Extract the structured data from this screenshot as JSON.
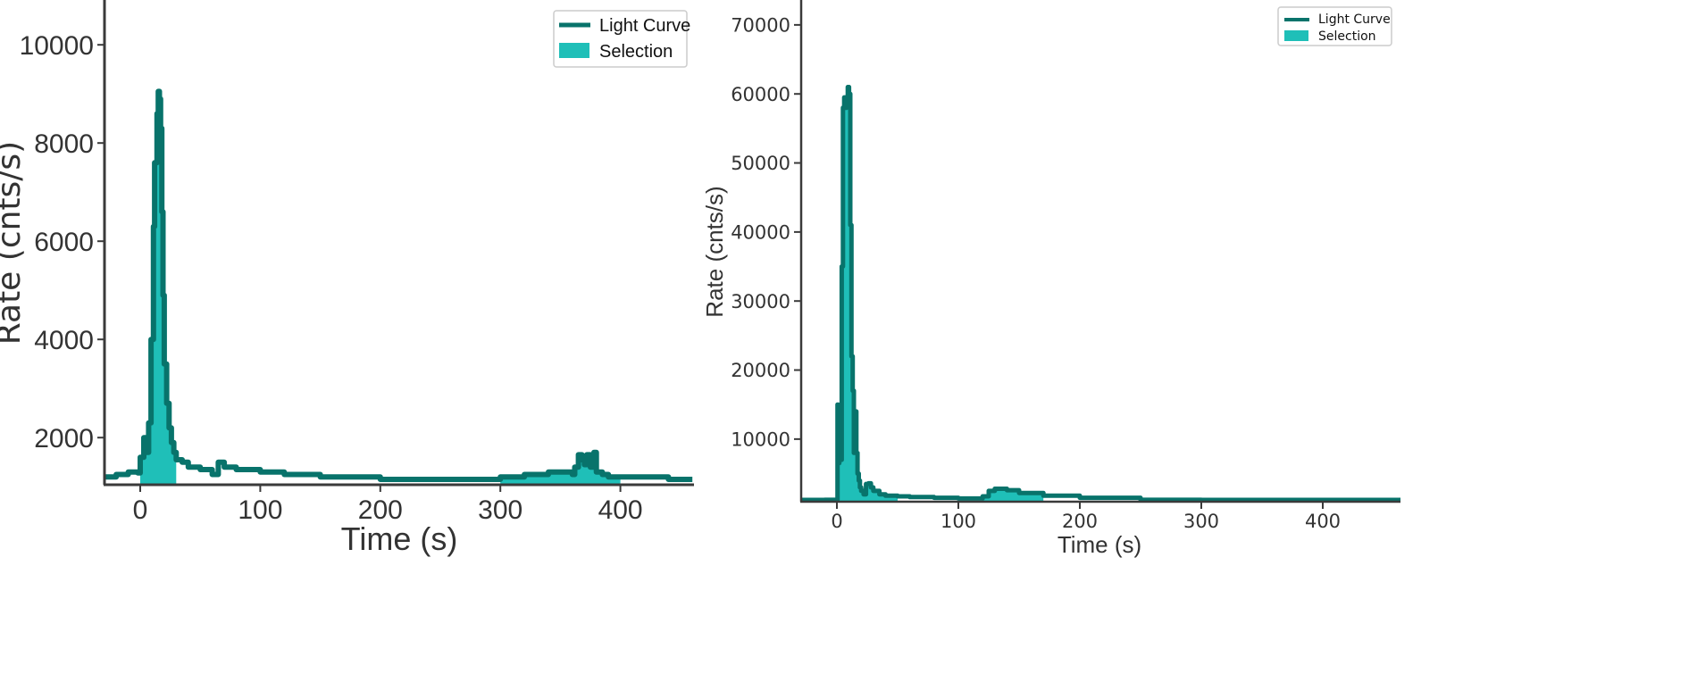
{
  "chart_data": [
    {
      "type": "line",
      "panel": "left",
      "title": "",
      "xlabel": "Time (s)",
      "ylabel": "Rate (cnts/s)",
      "xlim": [
        -30,
        460
      ],
      "ylim": [
        1000,
        10900
      ],
      "xticks": [
        0,
        100,
        200,
        300,
        400
      ],
      "yticks": [
        2000,
        4000,
        6000,
        8000,
        10000
      ],
      "grid": false,
      "legend": {
        "position": "upper right",
        "entries": [
          "Light Curve",
          "Selection"
        ]
      },
      "colors": {
        "light_curve": "#08736b",
        "selection": "#1fbfb8"
      },
      "selections": [
        [
          0,
          30
        ],
        [
          300,
          400
        ]
      ],
      "series": [
        {
          "name": "Light Curve",
          "x": [
            -30,
            -20,
            -10,
            -2,
            0,
            3,
            5,
            7,
            9,
            11,
            12,
            14,
            15,
            16,
            17,
            18,
            19,
            20,
            22,
            24,
            26,
            28,
            30,
            35,
            40,
            50,
            60,
            65,
            70,
            80,
            100,
            120,
            150,
            200,
            250,
            290,
            300,
            320,
            340,
            355,
            360,
            362,
            365,
            368,
            370,
            372,
            375,
            378,
            380,
            385,
            390,
            400,
            420,
            440,
            460
          ],
          "y": [
            1200,
            1250,
            1300,
            1280,
            1600,
            2000,
            1700,
            2300,
            4000,
            6300,
            7600,
            8600,
            9050,
            8900,
            8300,
            6600,
            4900,
            3500,
            2700,
            2200,
            1900,
            1700,
            1550,
            1500,
            1400,
            1350,
            1250,
            1500,
            1400,
            1350,
            1300,
            1250,
            1200,
            1150,
            1150,
            1150,
            1200,
            1250,
            1300,
            1300,
            1250,
            1400,
            1650,
            1550,
            1450,
            1650,
            1400,
            1700,
            1300,
            1250,
            1200,
            1200,
            1200,
            1150,
            1150
          ]
        },
        {
          "name": "Selection",
          "ranges": [
            [
              0,
              30
            ],
            [
              300,
              400
            ]
          ]
        }
      ]
    },
    {
      "type": "line",
      "panel": "right",
      "title": "",
      "xlabel": "Time (s)",
      "ylabel": "Rate (cnts/s)",
      "xlim": [
        -29,
        464
      ],
      "ylim": [
        900,
        74000
      ],
      "xticks": [
        0,
        100,
        200,
        300,
        400
      ],
      "yticks": [
        10000,
        20000,
        30000,
        40000,
        50000,
        60000,
        70000
      ],
      "grid": false,
      "legend": {
        "position": "upper right",
        "entries": [
          "Light Curve",
          "Selection"
        ]
      },
      "colors": {
        "light_curve": "#08736b",
        "selection": "#1fbfb8"
      },
      "selections": [
        [
          0,
          50
        ],
        [
          120,
          170
        ]
      ],
      "series": [
        {
          "name": "Light Curve",
          "x": [
            -29,
            -10,
            0,
            0.5,
            1,
            2,
            3,
            4,
            5,
            6,
            7,
            8,
            9,
            10,
            11,
            12,
            13,
            14,
            15,
            16,
            17,
            18,
            19,
            20,
            22,
            24,
            26,
            28,
            30,
            35,
            40,
            50,
            60,
            80,
            100,
            118,
            120,
            125,
            130,
            140,
            150,
            170,
            200,
            250,
            300,
            350,
            400,
            464
          ],
          "y": [
            1100,
            1200,
            1100,
            15000,
            6500,
            11000,
            7000,
            35000,
            58000,
            59500,
            58000,
            59000,
            61000,
            60000,
            41000,
            22000,
            17000,
            8000,
            14000,
            8000,
            5000,
            4000,
            3000,
            2500,
            2000,
            3500,
            3600,
            3000,
            2500,
            2000,
            1800,
            1700,
            1600,
            1500,
            1400,
            1400,
            1700,
            2500,
            2800,
            2600,
            2200,
            1800,
            1500,
            1200,
            1100,
            1000,
            950,
            900
          ]
        },
        {
          "name": "Selection",
          "ranges": [
            [
              0,
              50
            ],
            [
              120,
              170
            ]
          ]
        }
      ]
    }
  ],
  "left": {
    "xlabel": "Time (s)",
    "ylabel": "Rate (cnts/s)",
    "xticks": [
      "0",
      "100",
      "200",
      "300",
      "400"
    ],
    "yticks": [
      "2000",
      "4000",
      "6000",
      "8000",
      "10000"
    ],
    "legend": {
      "line": "Light Curve",
      "fill": "Selection"
    }
  },
  "right": {
    "xlabel": "Time (s)",
    "ylabel": "Rate (cnts/s)",
    "xticks": [
      "0",
      "100",
      "200",
      "300",
      "400"
    ],
    "yticks": [
      "10000",
      "20000",
      "30000",
      "40000",
      "50000",
      "60000",
      "70000"
    ],
    "legend": {
      "line": "Light Curve",
      "fill": "Selection"
    }
  }
}
